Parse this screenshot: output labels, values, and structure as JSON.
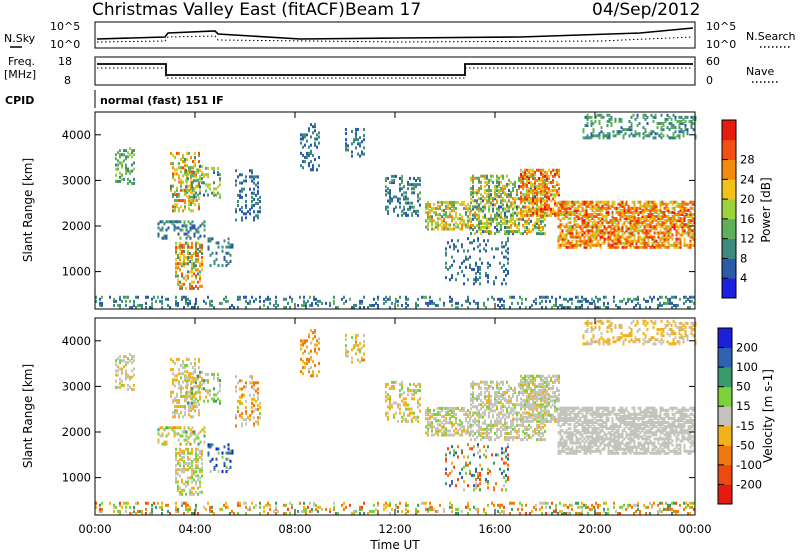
{
  "header": {
    "station": "Christmas Valley East (fitACF)",
    "beam": "Beam 17",
    "date": "04/Sep/2012"
  },
  "noise_panel": {
    "left_label": "N.Sky",
    "right_label": "N.Search",
    "left_ticks": [
      "10^5",
      "10^0"
    ],
    "right_ticks": [
      "10^5",
      "10^0"
    ]
  },
  "freq_panel": {
    "left_label_line1": "Freq.",
    "left_label_line2": "[MHz]",
    "left_ticks": [
      "18",
      "8"
    ],
    "right_ticks": [
      "60",
      "0"
    ],
    "right_label": "Nave"
  },
  "cpid": {
    "label": "CPID",
    "value": "normal (fast) 151 IF"
  },
  "chart_data": [
    {
      "type": "heatmap",
      "name": "power_panel",
      "ylabel": "Slant Range [km]",
      "yticks": [
        "1000",
        "2000",
        "3000",
        "4000"
      ],
      "ylim": [
        180,
        4500
      ],
      "colorbar_label": "Power [dB]",
      "colorbar_ticks": [
        "4",
        "8",
        "12",
        "16",
        "20",
        "24",
        "28"
      ],
      "colorbar_colors": [
        "#1a1fe0",
        "#2a5aa8",
        "#3f8a7e",
        "#5fae5a",
        "#9ed23a",
        "#f2c21a",
        "#f48a10",
        "#f05010",
        "#e81b10"
      ],
      "colorbar_range": [
        0,
        32
      ]
    },
    {
      "type": "heatmap",
      "name": "velocity_panel",
      "ylabel": "Slant Range [km]",
      "yticks": [
        "1000",
        "2000",
        "3000",
        "4000"
      ],
      "ylim": [
        180,
        4500
      ],
      "colorbar_label": "Velocity [m s-1]",
      "colorbar_ticks": [
        "200",
        "100",
        "50",
        "15",
        "-15",
        "-50",
        "-100",
        "-200"
      ],
      "colorbar_colors": [
        "#1a20d8",
        "#2e63b0",
        "#3b9a6a",
        "#7cd23a",
        "#c4c4bc",
        "#f2b21a",
        "#f07a10",
        "#ec4a10",
        "#e51a12"
      ]
    }
  ],
  "x_axis": {
    "ticks": [
      "00:00",
      "04:00",
      "08:00",
      "12:00",
      "16:00",
      "20:00",
      "00:00"
    ],
    "label": "Time UT",
    "range_hours": [
      0,
      24
    ]
  },
  "scatter_regions": [
    {
      "t0": 0.8,
      "t1": 1.6,
      "r0": 2900,
      "r1": 3700,
      "d": 0.35,
      "p": [
        8,
        16
      ],
      "v": [
        -30,
        20
      ]
    },
    {
      "t0": 3.0,
      "t1": 4.2,
      "r0": 2300,
      "r1": 3600,
      "d": 0.4,
      "p": [
        10,
        28
      ],
      "v": [
        -40,
        20
      ]
    },
    {
      "t0": 3.6,
      "t1": 5.0,
      "r0": 2600,
      "r1": 3300,
      "d": 0.3,
      "p": [
        6,
        20
      ],
      "v": [
        -30,
        60
      ]
    },
    {
      "t0": 2.5,
      "t1": 4.4,
      "r0": 1700,
      "r1": 2100,
      "d": 0.3,
      "p": [
        4,
        12
      ],
      "v": [
        -60,
        60
      ]
    },
    {
      "t0": 3.2,
      "t1": 4.3,
      "r0": 600,
      "r1": 1600,
      "d": 0.45,
      "p": [
        8,
        28
      ],
      "v": [
        -30,
        30
      ]
    },
    {
      "t0": 4.5,
      "t1": 5.5,
      "r0": 1100,
      "r1": 1700,
      "d": 0.25,
      "p": [
        4,
        10
      ],
      "v": [
        -20,
        250
      ]
    },
    {
      "t0": 5.6,
      "t1": 6.6,
      "r0": 2100,
      "r1": 3200,
      "d": 0.25,
      "p": [
        4,
        10
      ],
      "v": [
        -80,
        20
      ]
    },
    {
      "t0": 8.2,
      "t1": 9.0,
      "r0": 3200,
      "r1": 4200,
      "d": 0.25,
      "p": [
        4,
        10
      ],
      "v": [
        -90,
        -10
      ]
    },
    {
      "t0": 10.0,
      "t1": 10.8,
      "r0": 3500,
      "r1": 4100,
      "d": 0.25,
      "p": [
        4,
        10
      ],
      "v": [
        -60,
        30
      ]
    },
    {
      "t0": 11.6,
      "t1": 13.0,
      "r0": 2200,
      "r1": 3100,
      "d": 0.28,
      "p": [
        4,
        12
      ],
      "v": [
        -50,
        40
      ]
    },
    {
      "t0": 13.2,
      "t1": 15.0,
      "r0": 1900,
      "r1": 2500,
      "d": 0.5,
      "p": [
        10,
        24
      ],
      "v": [
        -30,
        30
      ]
    },
    {
      "t0": 14.0,
      "t1": 16.5,
      "r0": 700,
      "r1": 1700,
      "d": 0.15,
      "p": [
        4,
        10
      ],
      "v": [
        -150,
        150
      ]
    },
    {
      "t0": 15.0,
      "t1": 18.0,
      "r0": 1800,
      "r1": 3100,
      "d": 0.45,
      "p": [
        6,
        24
      ],
      "v": [
        -20,
        20
      ]
    },
    {
      "t0": 17.0,
      "t1": 18.6,
      "r0": 2200,
      "r1": 3200,
      "d": 0.55,
      "p": [
        16,
        30
      ],
      "v": [
        -20,
        20
      ]
    },
    {
      "t0": 18.5,
      "t1": 24.0,
      "r0": 1500,
      "r1": 2500,
      "d": 0.65,
      "p": [
        16,
        30
      ],
      "v": [
        -15,
        15
      ]
    },
    {
      "t0": 19.5,
      "t1": 24.0,
      "r0": 3900,
      "r1": 4400,
      "d": 0.3,
      "p": [
        6,
        14
      ],
      "v": [
        -40,
        0
      ]
    },
    {
      "t0": 0.0,
      "t1": 24.0,
      "r0": 180,
      "r1": 420,
      "d": 0.22,
      "p": [
        4,
        12
      ],
      "v": [
        -120,
        80
      ]
    }
  ]
}
